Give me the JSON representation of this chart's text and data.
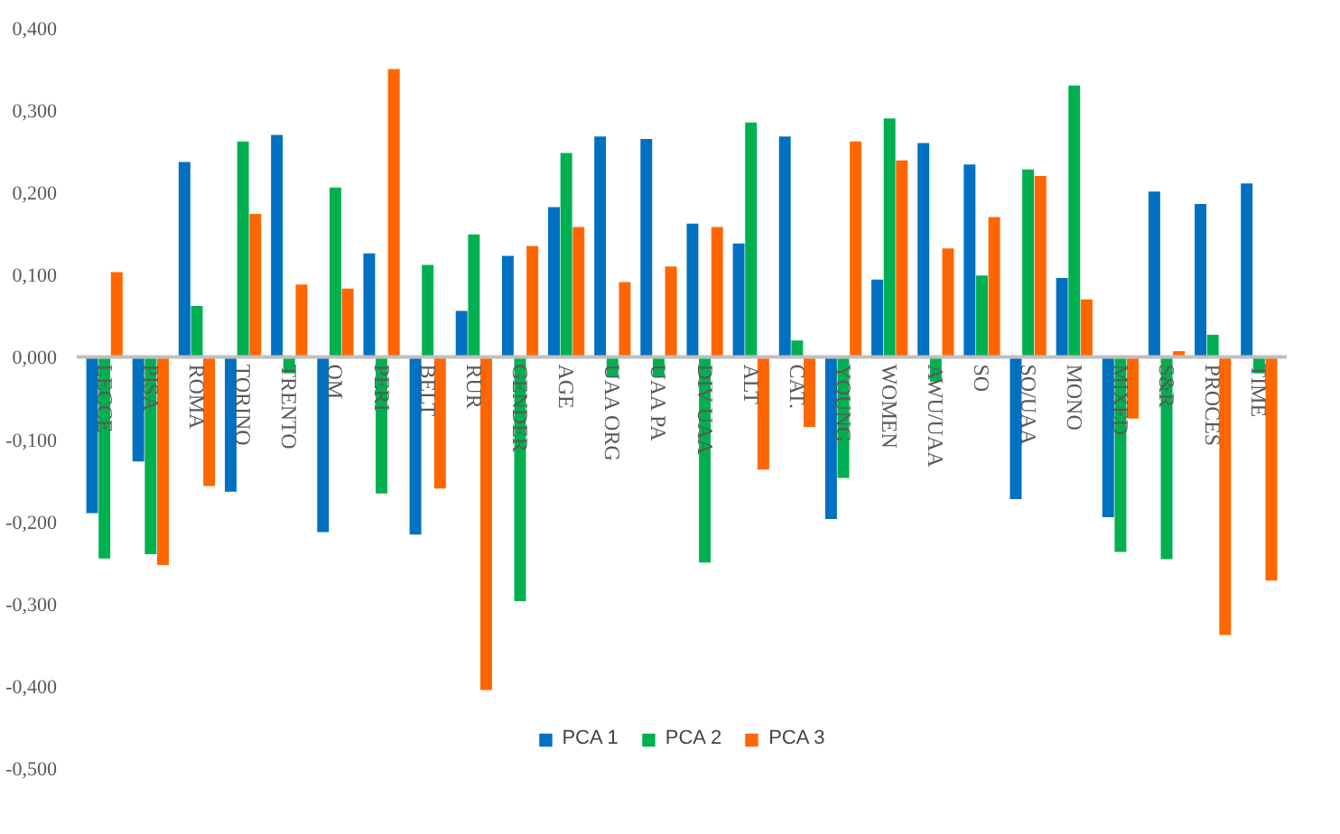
{
  "chart_data": {
    "type": "bar",
    "categories": [
      "LECCE",
      "PISA",
      "ROMA",
      "TORINO",
      "TRENTO",
      "OM",
      "PERI",
      "BELT",
      "RUR",
      "GENDER",
      "AGE",
      "UAA ORG",
      "UAA PA",
      "DIV UAA",
      "ALT",
      "CAT.",
      "YOUNG",
      "WOMEN",
      "AWU/UAA",
      "SO",
      "SO/UAA",
      "MONO",
      "MIXED",
      "S&R",
      "PROCES",
      "TIME"
    ],
    "series": [
      {
        "name": "PCA 1",
        "color": "#0070c0",
        "values": [
          -0.19,
          -0.127,
          0.237,
          -0.164,
          0.27,
          -0.213,
          0.126,
          -0.216,
          0.056,
          0.123,
          0.182,
          0.268,
          0.265,
          0.162,
          0.138,
          0.268,
          -0.197,
          0.094,
          0.26,
          0.234,
          -0.173,
          0.096,
          -0.195,
          0.201,
          0.186,
          0.211
        ]
      },
      {
        "name": "PCA 2",
        "color": "#00b050",
        "values": [
          -0.245,
          -0.24,
          0.062,
          0.262,
          -0.02,
          0.206,
          -0.166,
          0.112,
          0.149,
          -0.297,
          0.248,
          -0.025,
          -0.025,
          -0.25,
          0.285,
          0.02,
          -0.147,
          0.29,
          -0.03,
          0.099,
          0.228,
          0.33,
          -0.237,
          -0.246,
          0.027,
          -0.02
        ]
      },
      {
        "name": "PCA 3",
        "color": "#ff6600",
        "values": [
          0.103,
          -0.253,
          -0.157,
          0.174,
          0.088,
          0.083,
          0.35,
          -0.16,
          -0.405,
          0.135,
          0.158,
          0.091,
          0.11,
          0.158,
          -0.137,
          -0.085,
          0.262,
          0.239,
          0.132,
          0.17,
          0.22,
          0.07,
          -0.075,
          0.007,
          -0.338,
          -0.272
        ]
      }
    ],
    "ylim": [
      -0.5,
      0.4
    ],
    "yticks": [
      {
        "value": -0.5,
        "label": "-0,500"
      },
      {
        "value": -0.4,
        "label": "-0,400"
      },
      {
        "value": -0.3,
        "label": "-0,300"
      },
      {
        "value": -0.2,
        "label": "-0,200"
      },
      {
        "value": -0.1,
        "label": "-0,100"
      },
      {
        "value": 0,
        "label": "0,000"
      },
      {
        "value": 0.1,
        "label": "0,100"
      },
      {
        "value": 0.2,
        "label": "0,200"
      },
      {
        "value": 0.3,
        "label": "0,300"
      },
      {
        "value": 0.4,
        "label": "0,400"
      }
    ],
    "legend": "bottom",
    "grid": false
  }
}
